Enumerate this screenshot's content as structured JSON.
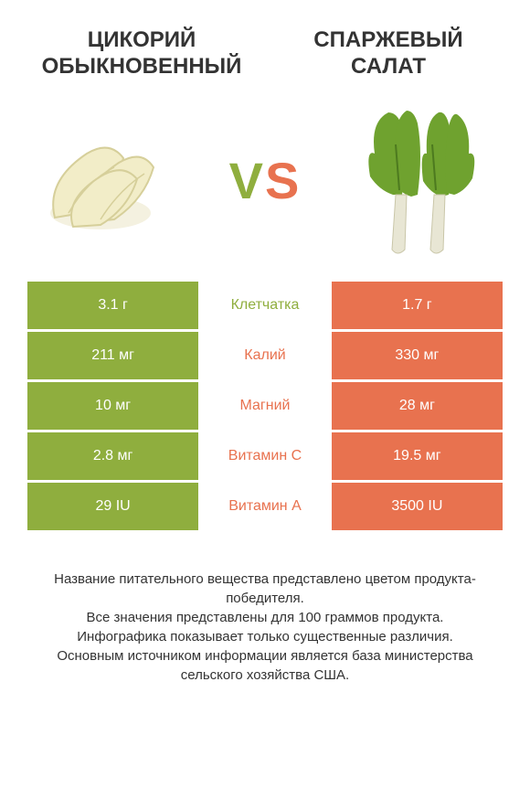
{
  "titles": {
    "left": "ЦИКОРИЙ ОБЫКНОВЕННЫЙ",
    "right": "СПАРЖЕВЫЙ САЛАТ"
  },
  "vs": {
    "v": "V",
    "s": "S"
  },
  "colors": {
    "left_bg": "#8fae3e",
    "right_bg": "#e8724f",
    "mid_text": "#ffffff"
  },
  "rows": [
    {
      "left": "3.1 г",
      "label": "Клетчатка",
      "right": "1.7 г",
      "winner": "left"
    },
    {
      "left": "211 мг",
      "label": "Калий",
      "right": "330 мг",
      "winner": "right"
    },
    {
      "left": "10 мг",
      "label": "Магний",
      "right": "28 мг",
      "winner": "right"
    },
    {
      "left": "2.8 мг",
      "label": "Витамин C",
      "right": "19.5 мг",
      "winner": "right"
    },
    {
      "left": "29 IU",
      "label": "Витамин A",
      "right": "3500 IU",
      "winner": "right"
    }
  ],
  "footer": {
    "l1": "Название питательного вещества представлено цветом продукта-победителя.",
    "l2": "Все значения представлены для 100 граммов продукта.",
    "l3": "Инфографика показывает только существенные различия.",
    "l4": "Основным источником информации является база министерства сельского хозяйства США."
  }
}
